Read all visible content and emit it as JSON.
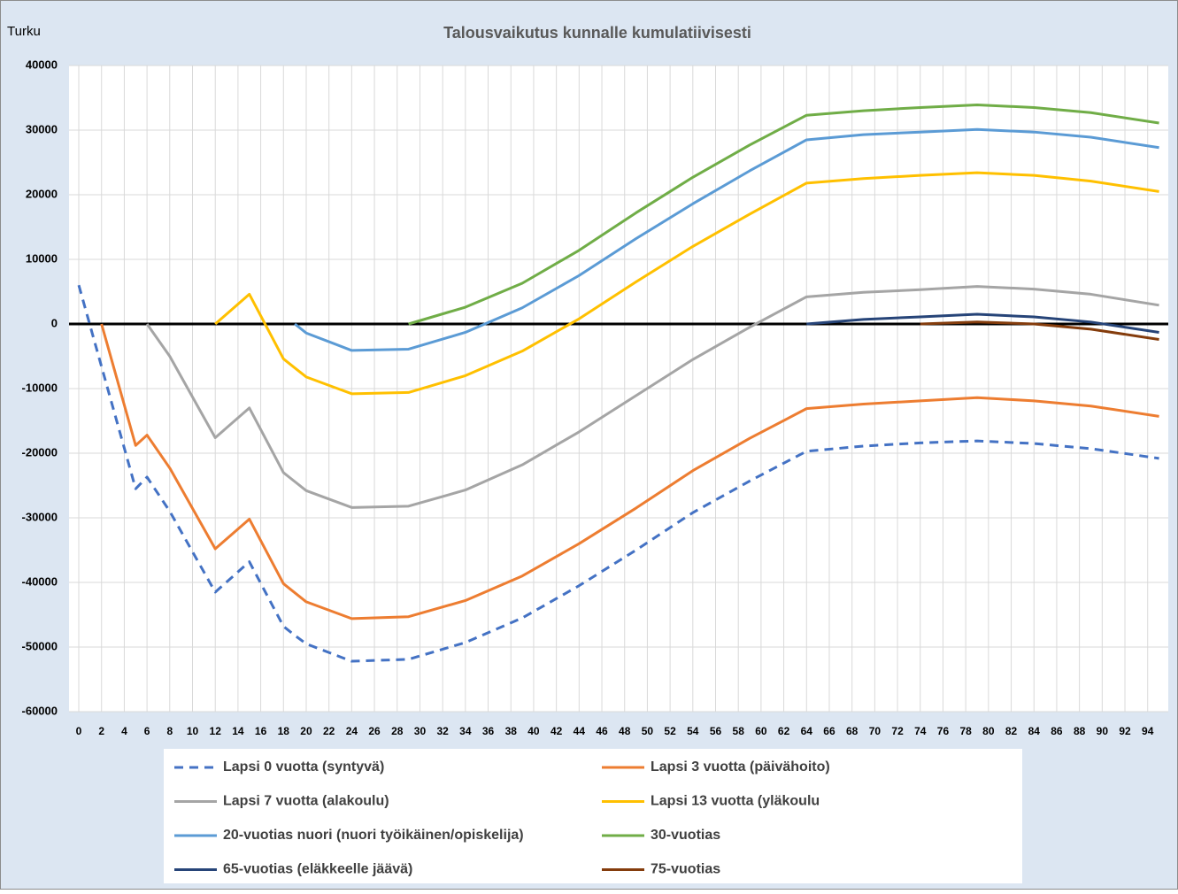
{
  "chart_data": {
    "type": "line",
    "title": "Talousvaikutus kunnalle kumulatiivisesti",
    "subtitle": "Turku",
    "x": [
      0,
      2,
      5,
      6,
      8,
      12,
      15,
      18,
      19,
      20,
      24,
      29,
      34,
      39,
      44,
      49,
      54,
      59,
      64,
      69,
      74,
      79,
      84,
      89,
      95
    ],
    "xlim": [
      -0.5,
      95.5
    ],
    "xticks": [
      0,
      2,
      4,
      6,
      8,
      10,
      12,
      14,
      16,
      18,
      20,
      22,
      24,
      26,
      28,
      30,
      32,
      34,
      36,
      38,
      40,
      42,
      44,
      46,
      48,
      50,
      52,
      54,
      56,
      58,
      60,
      62,
      64,
      66,
      68,
      70,
      72,
      74,
      76,
      78,
      80,
      82,
      84,
      86,
      88,
      90,
      92,
      94
    ],
    "ylim": [
      -60000,
      40000
    ],
    "yticks": [
      -60000,
      -50000,
      -40000,
      -30000,
      -20000,
      -10000,
      0,
      10000,
      20000,
      30000,
      40000
    ],
    "grid": true,
    "legend": "bottom",
    "series": [
      {
        "name": "Lapsi 0 vuotta (syntyvä)",
        "color": "#4472c4",
        "dash": "dashed",
        "values": [
          6000,
          -6600,
          -25500,
          -23700,
          -29000,
          -41500,
          -36800,
          -46800,
          -48200,
          -49500,
          -52200,
          -51900,
          -49300,
          -45500,
          -40500,
          -35000,
          -29200,
          -24300,
          -19700,
          -18900,
          -18400,
          -18100,
          -18500,
          -19300,
          -20800
        ]
      },
      {
        "name": "Lapsi 3 vuotta (päivähoito)",
        "color": "#ed7d31",
        "values": [
          null,
          0,
          -18800,
          -17200,
          -22300,
          -34800,
          -30200,
          -40200,
          -41600,
          -43000,
          -45600,
          -45300,
          -42800,
          -39000,
          -34000,
          -28500,
          -22700,
          -17700,
          -13100,
          -12400,
          -11900,
          -11400,
          -11900,
          -12700,
          -14300
        ]
      },
      {
        "name": "Lapsi 7 vuotta (alakoulu)",
        "color": "#a5a5a5",
        "values": [
          null,
          null,
          null,
          0,
          -5000,
          -17600,
          -13000,
          -23000,
          -24400,
          -25800,
          -28400,
          -28200,
          -25700,
          -21800,
          -16700,
          -11100,
          -5500,
          -500,
          4200,
          4900,
          5300,
          5800,
          5400,
          4600,
          2900
        ]
      },
      {
        "name": "Lapsi 13 vuotta (yläkoulu",
        "color": "#ffc000",
        "values": [
          null,
          null,
          null,
          null,
          null,
          0,
          4600,
          -5400,
          -6800,
          -8200,
          -10800,
          -10600,
          -8000,
          -4200,
          800,
          6500,
          12000,
          17000,
          21800,
          22500,
          23000,
          23400,
          23000,
          22100,
          20500
        ]
      },
      {
        "name": "20-vuotias nuori (nuori työikäinen/opiskelija)",
        "color": "#5b9bd5",
        "values": [
          null,
          null,
          null,
          null,
          null,
          null,
          null,
          null,
          0,
          -1400,
          -4100,
          -3900,
          -1300,
          2500,
          7500,
          13200,
          18600,
          23700,
          28500,
          29300,
          29700,
          30100,
          29700,
          28900,
          27300
        ]
      },
      {
        "name": "30-vuotias",
        "color": "#70ad47",
        "values": [
          null,
          null,
          null,
          null,
          null,
          null,
          null,
          null,
          null,
          null,
          null,
          0,
          2600,
          6300,
          11400,
          17200,
          22700,
          27700,
          32300,
          33000,
          33500,
          33900,
          33500,
          32700,
          31100
        ]
      },
      {
        "name": "65-vuotias (eläkkeelle jäävä)",
        "color": "#264478",
        "values": [
          null,
          null,
          null,
          null,
          null,
          null,
          null,
          null,
          null,
          null,
          null,
          null,
          null,
          null,
          null,
          null,
          null,
          null,
          0,
          700,
          1100,
          1500,
          1100,
          300,
          -1300
        ]
      },
      {
        "name": "75-vuotias",
        "color": "#843c0c",
        "values": [
          null,
          null,
          null,
          null,
          null,
          null,
          null,
          null,
          null,
          null,
          null,
          null,
          null,
          null,
          null,
          null,
          null,
          null,
          null,
          null,
          0,
          300,
          0,
          -800,
          -2400
        ]
      }
    ]
  }
}
